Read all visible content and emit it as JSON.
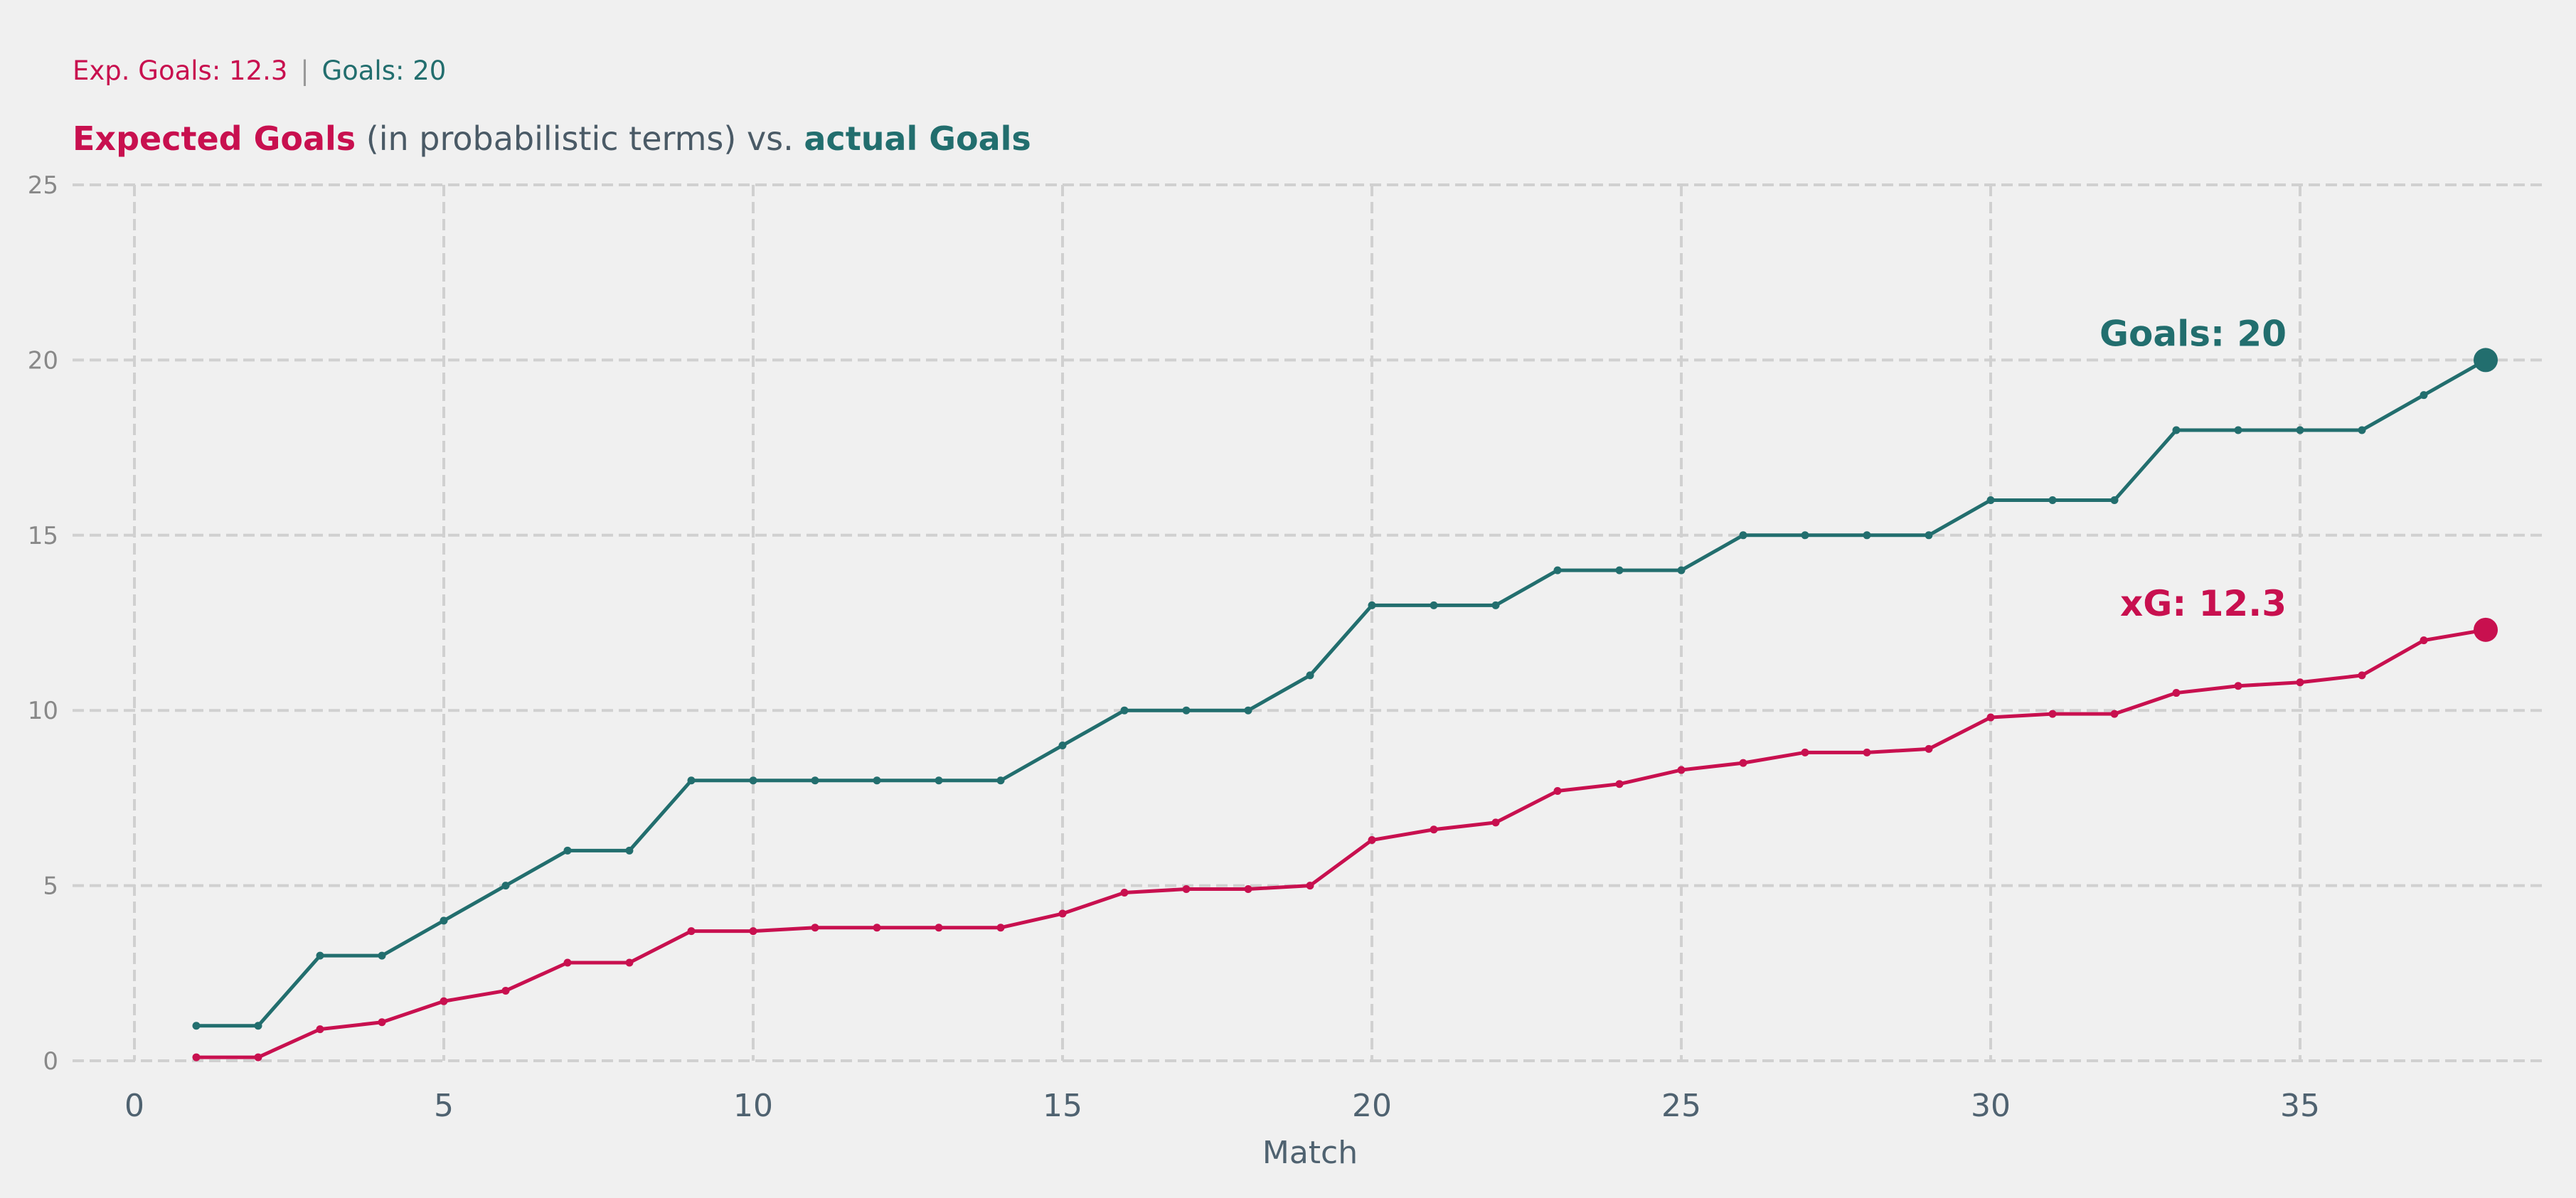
{
  "header": {
    "subtitle_xg": "Exp. Goals: 12.3",
    "subtitle_sep": "|",
    "subtitle_goals": "Goals: 20",
    "title_part1": "Expected Goals",
    "title_part2": " (in probabilistic terms) vs. ",
    "title_part3": "actual Goals"
  },
  "colors": {
    "xg": "#c8104f",
    "goals": "#226e6e",
    "grid": "#d0d0d0",
    "separator": "#999999"
  },
  "chart_data": {
    "type": "line",
    "title": "Expected Goals (in probabilistic terms) vs. actual Goals",
    "xlabel": "Match",
    "ylabel": "",
    "xlim": [
      -1,
      39
    ],
    "ylim": [
      0,
      25
    ],
    "xticks": [
      0,
      5,
      10,
      15,
      20,
      25,
      30,
      35
    ],
    "yticks": [
      0,
      5,
      10,
      15,
      20,
      25
    ],
    "grid": true,
    "x": [
      1,
      2,
      3,
      4,
      5,
      6,
      7,
      8,
      9,
      10,
      11,
      12,
      13,
      14,
      15,
      16,
      17,
      18,
      19,
      20,
      21,
      22,
      23,
      24,
      25,
      26,
      27,
      28,
      29,
      30,
      31,
      32,
      33,
      34,
      35,
      36,
      37,
      38
    ],
    "series": [
      {
        "key": "goals",
        "values": [
          1,
          1,
          3,
          3,
          4,
          5,
          6,
          6,
          8,
          8,
          8,
          8,
          8,
          8,
          9,
          10,
          10,
          10,
          11,
          13,
          13,
          13,
          14,
          14,
          14,
          15,
          15,
          15,
          15,
          16,
          16,
          16,
          18,
          18,
          18,
          18,
          19,
          20
        ],
        "end_label": "Goals: 20"
      },
      {
        "key": "xg",
        "values": [
          0.1,
          0.1,
          0.9,
          1.1,
          1.7,
          2.0,
          2.8,
          2.8,
          3.7,
          3.7,
          3.8,
          3.8,
          3.8,
          3.8,
          4.2,
          4.8,
          4.9,
          4.9,
          5.0,
          6.3,
          6.6,
          6.8,
          7.7,
          7.9,
          8.3,
          8.5,
          8.8,
          8.8,
          8.9,
          9.8,
          9.9,
          9.9,
          10.5,
          10.7,
          10.8,
          11.0,
          12.0,
          12.3
        ],
        "end_label": "xG: 12.3"
      }
    ]
  }
}
